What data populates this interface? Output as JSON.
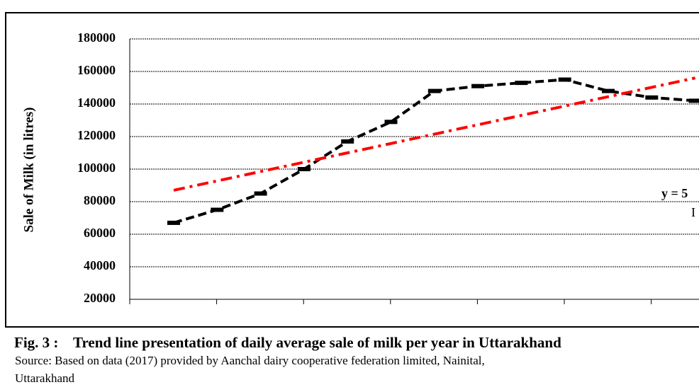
{
  "chart_data": {
    "type": "line",
    "ylabel": "Sale of Milk (in litres)",
    "categories": [
      null,
      null,
      null,
      null,
      null,
      null,
      null,
      null,
      null,
      null,
      null,
      null,
      null
    ],
    "series": [
      {
        "color": "#000000",
        "style": "dashed",
        "markers": true,
        "values": [
          67000,
          75000,
          85000,
          100000,
          117000,
          129000,
          148000,
          151000,
          153000,
          155000,
          148000,
          144000,
          142000
        ]
      },
      {
        "color": "#ff0000",
        "style": "dashdot",
        "markers": false,
        "values": [
          87000,
          92750,
          98500,
          104250,
          110000,
          115750,
          121500,
          127250,
          133000,
          138750,
          144500,
          150250,
          156000
        ]
      }
    ],
    "ylim": [
      20000,
      180000
    ],
    "yticks": [
      20000,
      40000,
      60000,
      80000,
      100000,
      120000,
      140000,
      160000,
      180000
    ],
    "grid": true,
    "annotations": [
      "y = 5",
      "I"
    ],
    "caption": {
      "title": "Fig. 3 :    Trend line presentation of daily average sale of milk per year in Uttarakhand",
      "source": [
        "Source: Based on data (2017) provided by Aanchal dairy cooperative federation limited, Nainital,",
        "Uttarakhand"
      ]
    }
  }
}
